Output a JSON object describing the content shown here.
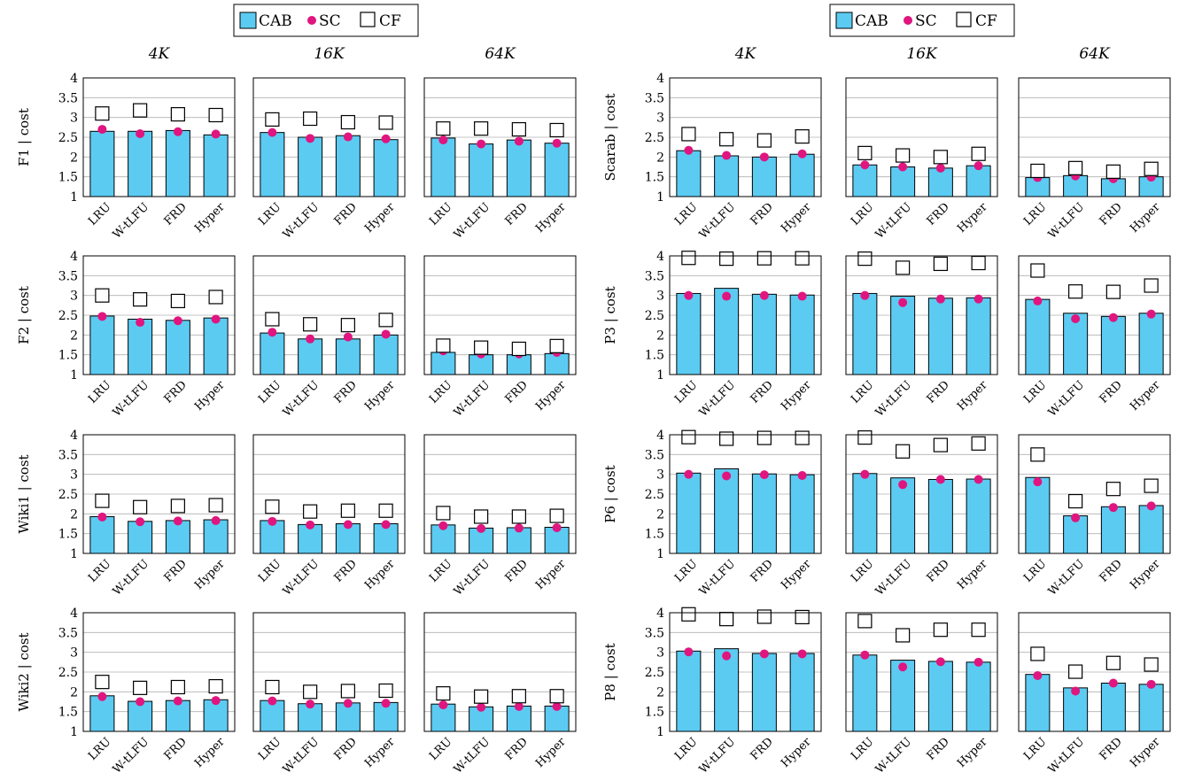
{
  "legend": {
    "items": [
      {
        "label": "CAB",
        "symbol": "bar",
        "color": "#5ccbf2"
      },
      {
        "label": "SC",
        "symbol": "dot",
        "color": "#e0157f"
      },
      {
        "label": "CF",
        "symbol": "square",
        "color": "#ffffff"
      }
    ]
  },
  "colors": {
    "cab": "#5ccbf2",
    "sc": "#e0157f",
    "cf": "#ffffff",
    "grid": "#b0b0b0"
  },
  "chart_data": {
    "type": "bar",
    "description_none": "",
    "categories": [
      "LRU",
      "W-tLFU",
      "FRD",
      "Hyper"
    ],
    "cache_sizes": [
      "4K",
      "16K",
      "64K"
    ],
    "ylim": [
      1,
      4
    ],
    "yticks": [
      "1",
      "1.5",
      "2",
      "2.5",
      "3",
      "3.5",
      "4"
    ],
    "grid": true,
    "legend_position": "top",
    "series_names": [
      "CAB",
      "SC",
      "CF"
    ],
    "groups": [
      {
        "ylabel": "F1 | cost",
        "panels": [
          {
            "size": "4K",
            "CAB": [
              2.65,
              2.65,
              2.67,
              2.56
            ],
            "SC": [
              2.7,
              2.59,
              2.64,
              2.58
            ],
            "CF": [
              3.1,
              3.18,
              3.08,
              3.06
            ]
          },
          {
            "size": "16K",
            "CAB": [
              2.62,
              2.5,
              2.54,
              2.44
            ],
            "SC": [
              2.62,
              2.47,
              2.51,
              2.46
            ],
            "CF": [
              2.95,
              2.97,
              2.88,
              2.87
            ]
          },
          {
            "size": "64K",
            "CAB": [
              2.48,
              2.33,
              2.43,
              2.35
            ],
            "SC": [
              2.43,
              2.33,
              2.4,
              2.35
            ],
            "CF": [
              2.72,
              2.72,
              2.7,
              2.68
            ]
          }
        ]
      },
      {
        "ylabel": "Scarab | cost",
        "panels": [
          {
            "size": "4K",
            "CAB": [
              2.16,
              2.03,
              2.0,
              2.07
            ],
            "SC": [
              2.17,
              2.04,
              2.0,
              2.08
            ],
            "CF": [
              2.58,
              2.45,
              2.42,
              2.52
            ]
          },
          {
            "size": "16K",
            "CAB": [
              1.8,
              1.75,
              1.72,
              1.78
            ],
            "SC": [
              1.8,
              1.75,
              1.72,
              1.78
            ],
            "CF": [
              2.1,
              2.04,
              2.0,
              2.08
            ]
          },
          {
            "size": "64K",
            "CAB": [
              1.48,
              1.53,
              1.45,
              1.5
            ],
            "SC": [
              1.48,
              1.52,
              1.45,
              1.49
            ],
            "CF": [
              1.65,
              1.72,
              1.63,
              1.7
            ]
          }
        ]
      },
      {
        "ylabel": "F2 | cost",
        "panels": [
          {
            "size": "4K",
            "CAB": [
              2.48,
              2.4,
              2.37,
              2.43
            ],
            "SC": [
              2.47,
              2.32,
              2.36,
              2.4
            ],
            "CF": [
              3.0,
              2.9,
              2.86,
              2.96
            ]
          },
          {
            "size": "16K",
            "CAB": [
              2.05,
              1.9,
              1.9,
              2.0
            ],
            "SC": [
              2.07,
              1.9,
              1.95,
              2.02
            ],
            "CF": [
              2.4,
              2.27,
              2.25,
              2.38
            ]
          },
          {
            "size": "64K",
            "CAB": [
              1.56,
              1.5,
              1.5,
              1.53
            ],
            "SC": [
              1.6,
              1.52,
              1.52,
              1.56
            ],
            "CF": [
              1.73,
              1.68,
              1.65,
              1.72
            ]
          }
        ]
      },
      {
        "ylabel": "P3 | cost",
        "panels": [
          {
            "size": "4K",
            "CAB": [
              3.05,
              3.18,
              3.03,
              3.01
            ],
            "SC": [
              3.0,
              2.98,
              3.0,
              2.98
            ],
            "CF": [
              3.95,
              3.93,
              3.94,
              3.94
            ]
          },
          {
            "size": "16K",
            "CAB": [
              3.05,
              2.98,
              2.93,
              2.94
            ],
            "SC": [
              3.0,
              2.82,
              2.91,
              2.91
            ],
            "CF": [
              3.93,
              3.7,
              3.8,
              3.82
            ]
          },
          {
            "size": "64K",
            "CAB": [
              2.9,
              2.55,
              2.47,
              2.55
            ],
            "SC": [
              2.86,
              2.41,
              2.44,
              2.53
            ],
            "CF": [
              3.63,
              3.1,
              3.09,
              3.25
            ]
          }
        ]
      },
      {
        "ylabel": "Wiki1 | cost",
        "panels": [
          {
            "size": "4K",
            "CAB": [
              1.93,
              1.81,
              1.83,
              1.85
            ],
            "SC": [
              1.92,
              1.8,
              1.82,
              1.83
            ],
            "CF": [
              2.33,
              2.17,
              2.2,
              2.22
            ]
          },
          {
            "size": "16K",
            "CAB": [
              1.83,
              1.73,
              1.75,
              1.75
            ],
            "SC": [
              1.81,
              1.72,
              1.73,
              1.73
            ],
            "CF": [
              2.18,
              2.06,
              2.08,
              2.08
            ]
          },
          {
            "size": "64K",
            "CAB": [
              1.72,
              1.64,
              1.65,
              1.66
            ],
            "SC": [
              1.7,
              1.63,
              1.64,
              1.65
            ],
            "CF": [
              2.02,
              1.93,
              1.93,
              1.95
            ]
          }
        ]
      },
      {
        "ylabel": "P6 | cost",
        "panels": [
          {
            "size": "4K",
            "CAB": [
              3.03,
              3.14,
              3.01,
              2.99
            ],
            "SC": [
              3.0,
              2.96,
              2.99,
              2.97
            ],
            "CF": [
              3.94,
              3.9,
              3.92,
              3.92
            ]
          },
          {
            "size": "16K",
            "CAB": [
              3.02,
              2.91,
              2.87,
              2.88
            ],
            "SC": [
              3.0,
              2.74,
              2.87,
              2.87
            ],
            "CF": [
              3.93,
              3.58,
              3.74,
              3.78
            ]
          },
          {
            "size": "64K",
            "CAB": [
              2.92,
              1.95,
              2.18,
              2.21
            ],
            "SC": [
              2.81,
              1.9,
              2.16,
              2.2
            ],
            "CF": [
              3.5,
              2.32,
              2.63,
              2.71
            ]
          }
        ]
      },
      {
        "ylabel": "Wiki2 | cost",
        "panels": [
          {
            "size": "4K",
            "CAB": [
              1.9,
              1.76,
              1.78,
              1.8
            ],
            "SC": [
              1.88,
              1.75,
              1.77,
              1.78
            ],
            "CF": [
              2.25,
              2.1,
              2.12,
              2.14
            ]
          },
          {
            "size": "16K",
            "CAB": [
              1.78,
              1.7,
              1.72,
              1.73
            ],
            "SC": [
              1.77,
              1.69,
              1.71,
              1.71
            ],
            "CF": [
              2.12,
              2.0,
              2.02,
              2.03
            ]
          },
          {
            "size": "64K",
            "CAB": [
              1.69,
              1.62,
              1.64,
              1.64
            ],
            "SC": [
              1.67,
              1.61,
              1.63,
              1.63
            ],
            "CF": [
              1.96,
              1.88,
              1.89,
              1.89
            ]
          }
        ]
      },
      {
        "ylabel": "P8 | cost",
        "panels": [
          {
            "size": "4K",
            "CAB": [
              3.03,
              3.09,
              2.97,
              2.97
            ],
            "SC": [
              3.01,
              2.91,
              2.96,
              2.96
            ],
            "CF": [
              3.96,
              3.84,
              3.9,
              3.89
            ]
          },
          {
            "size": "16K",
            "CAB": [
              2.93,
              2.8,
              2.77,
              2.75
            ],
            "SC": [
              2.93,
              2.63,
              2.76,
              2.75
            ],
            "CF": [
              3.79,
              3.43,
              3.57,
              3.57
            ]
          },
          {
            "size": "64K",
            "CAB": [
              2.44,
              2.1,
              2.22,
              2.19
            ],
            "SC": [
              2.41,
              2.02,
              2.22,
              2.19
            ],
            "CF": [
              2.96,
              2.51,
              2.73,
              2.69
            ]
          }
        ]
      }
    ]
  }
}
